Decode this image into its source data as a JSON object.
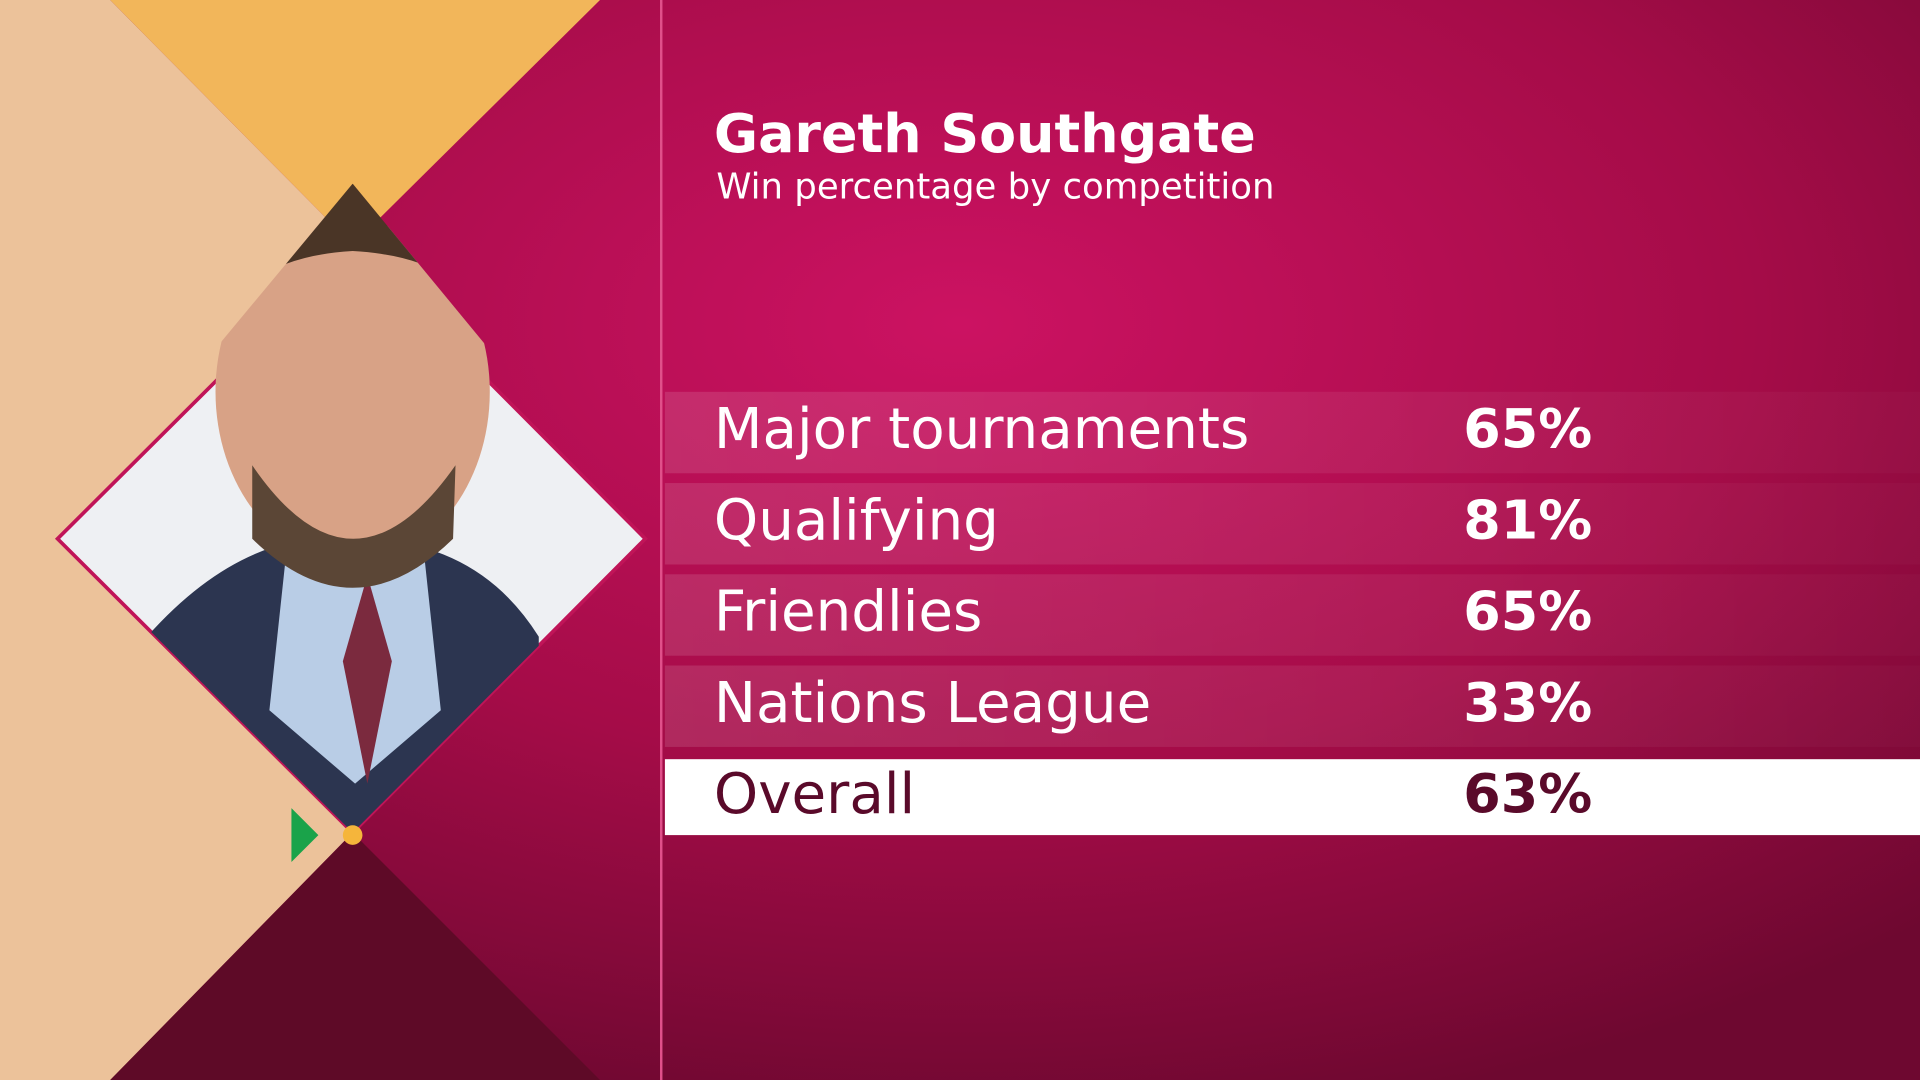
{
  "header": {
    "title": "Gareth Southgate",
    "subtitle": "Win percentage by competition"
  },
  "table": {
    "rows": [
      [
        "Major tournaments",
        "65%"
      ],
      [
        "Qualifying",
        "81%"
      ],
      [
        "Friendlies",
        "65%"
      ],
      [
        "Nations League",
        "33%"
      ],
      [
        "Overall",
        "63%"
      ]
    ]
  }
}
